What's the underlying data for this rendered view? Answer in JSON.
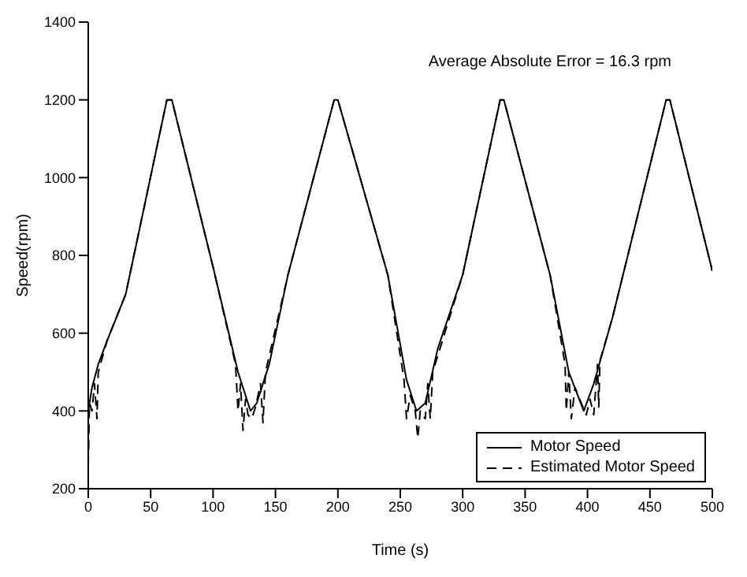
{
  "chart_data": {
    "type": "line",
    "xlabel": "Time (s)",
    "ylabel": "Speed(rpm)",
    "xlim": [
      0,
      500
    ],
    "xticks": [
      0,
      50,
      100,
      150,
      200,
      250,
      300,
      350,
      400,
      450,
      500
    ],
    "ylim": [
      200,
      1400
    ],
    "yticks": [
      200,
      400,
      600,
      800,
      1000,
      1200,
      1400
    ],
    "grid": false,
    "legend": "bottom right",
    "marker": "none",
    "annotations": [
      "Average Absolute Error = 16.3 rpm"
    ],
    "series": [
      {
        "name": "Motor Speed",
        "color": "#000000",
        "line_style": "solid",
        "x": [
          0,
          3,
          8,
          15,
          30,
          63,
          67,
          100,
          120,
          130,
          135,
          145,
          160,
          197,
          200,
          240,
          255,
          263,
          270,
          280,
          300,
          330,
          333,
          370,
          385,
          397,
          405,
          420,
          463,
          466,
          500
        ],
        "values": [
          400,
          460,
          520,
          580,
          700,
          1200,
          1200,
          770,
          500,
          400,
          420,
          520,
          750,
          1200,
          1200,
          750,
          480,
          400,
          420,
          560,
          750,
          1200,
          1200,
          750,
          500,
          400,
          470,
          640,
          1200,
          1200,
          760
        ]
      },
      {
        "name": "Estimated Motor Speed",
        "color": "#000000",
        "line_style": "dashed",
        "x": [
          0,
          1,
          3,
          5,
          7,
          8,
          15,
          30,
          63,
          67,
          100,
          118,
          120,
          122,
          124,
          126,
          128,
          131,
          134,
          138,
          140,
          142,
          160,
          197,
          200,
          240,
          253,
          255,
          258,
          262,
          264,
          266,
          270,
          272,
          274,
          276,
          300,
          330,
          333,
          370,
          382,
          383,
          385,
          387,
          390,
          395,
          399,
          402,
          405,
          408,
          409,
          410,
          420,
          463,
          466,
          500
        ],
        "values": [
          260,
          420,
          400,
          470,
          380,
          500,
          580,
          700,
          1200,
          1200,
          770,
          520,
          400,
          470,
          350,
          430,
          390,
          380,
          410,
          470,
          370,
          500,
          750,
          1200,
          1200,
          750,
          480,
          380,
          440,
          400,
          330,
          400,
          380,
          470,
          380,
          500,
          750,
          1200,
          1200,
          750,
          520,
          400,
          500,
          380,
          460,
          420,
          390,
          430,
          390,
          520,
          410,
          530,
          640,
          1200,
          1200,
          760
        ]
      }
    ]
  }
}
